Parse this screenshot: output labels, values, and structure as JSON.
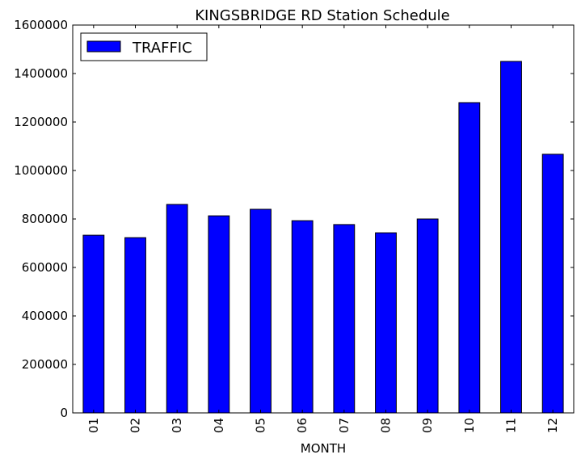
{
  "chart_data": {
    "type": "bar",
    "title": "KINGSBRIDGE RD Station Schedule",
    "xlabel": "MONTH",
    "ylabel": "",
    "categories": [
      "01",
      "02",
      "03",
      "04",
      "05",
      "06",
      "07",
      "08",
      "09",
      "10",
      "11",
      "12"
    ],
    "series": [
      {
        "name": "TRAFFIC",
        "color": "#0000ff",
        "values": [
          733000,
          723000,
          860000,
          813000,
          840000,
          793000,
          777000,
          743000,
          800000,
          1280000,
          1450000,
          1067000
        ]
      }
    ],
    "ylim": [
      0,
      1600000
    ],
    "yticks": [
      "0",
      "200000",
      "400000",
      "600000",
      "800000",
      "1000000",
      "1200000",
      "1400000",
      "1600000"
    ],
    "grid": false,
    "legend_position": "top-left"
  }
}
